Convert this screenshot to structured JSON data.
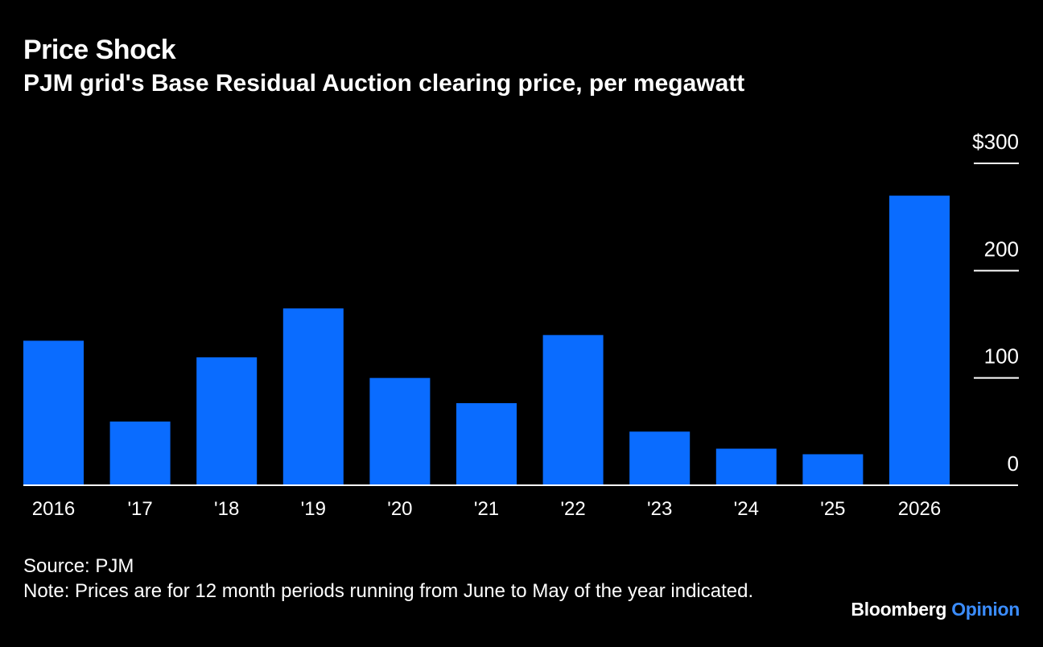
{
  "chart_data": {
    "type": "bar",
    "title": "Price Shock",
    "subtitle": "PJM grid's Base Residual Auction clearing price, per megawatt",
    "categories": [
      "2016",
      "'17",
      "'18",
      "'19",
      "'20",
      "'21",
      "'22",
      "'23",
      "'24",
      "'25",
      "2026"
    ],
    "values": [
      134.7,
      59.4,
      119.2,
      164.8,
      100.0,
      76.5,
      140.0,
      50.0,
      34.1,
      28.9,
      269.9
    ],
    "ylim": [
      0,
      300
    ],
    "yticks": [
      0,
      100,
      200,
      300
    ],
    "ytick_labels": [
      "0",
      "100",
      "200",
      "$300"
    ],
    "y_axis_side": "right",
    "xlabel": "",
    "ylabel": "",
    "grid": false
  },
  "footer": {
    "source": "Source: PJM",
    "note": "Note: Prices are for 12 month periods running from June to May of the year indicated."
  },
  "brand": {
    "name": "Bloomberg",
    "section": "Opinion"
  },
  "colors": {
    "background": "#000000",
    "bar": "#0a6cff",
    "text": "#ffffff",
    "brand_accent": "#3b8dff"
  }
}
